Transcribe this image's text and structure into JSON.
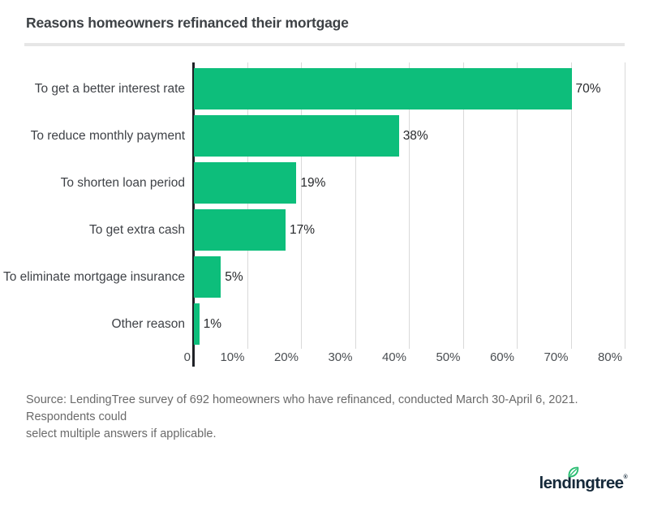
{
  "header": {
    "title": "Reasons homeowners refinanced their mortgage"
  },
  "chart_data": {
    "type": "bar",
    "orientation": "horizontal",
    "title": "Reasons homeowners refinanced their mortgage",
    "categories": [
      "To get a better interest rate",
      "To reduce monthly payment",
      "To shorten loan period",
      "To get extra cash",
      "To eliminate mortgage insurance",
      "Other reason"
    ],
    "values": [
      70,
      38,
      19,
      17,
      5,
      1
    ],
    "value_labels": [
      "70%",
      "38%",
      "19%",
      "17%",
      "5%",
      "1%"
    ],
    "x_ticks": [
      {
        "value": 0,
        "label": "0"
      },
      {
        "value": 10,
        "label": "10%"
      },
      {
        "value": 20,
        "label": "20%"
      },
      {
        "value": 30,
        "label": "30%"
      },
      {
        "value": 40,
        "label": "40%"
      },
      {
        "value": 50,
        "label": "50%"
      },
      {
        "value": 60,
        "label": "60%"
      },
      {
        "value": 70,
        "label": "70%"
      },
      {
        "value": 80,
        "label": "80%"
      }
    ],
    "xlim": [
      0,
      80
    ],
    "grid": "vertical gridlines only",
    "legend": "none",
    "bar_color": "#0dbe7b",
    "axis_color": "#1f2126",
    "grid_color": "#d9d9d9"
  },
  "source": {
    "lines": [
      "Source: LendingTree survey of 692 homeowners who have refinanced, conducted March 30-April 6, 2021. Respondents could",
      "select multiple answers if applicable."
    ]
  },
  "logo": {
    "part1": "lend",
    "dotless_i": "ı",
    "part2": "ngtree",
    "reg": "®",
    "navy": "#15293a",
    "green": "#2abd72"
  }
}
